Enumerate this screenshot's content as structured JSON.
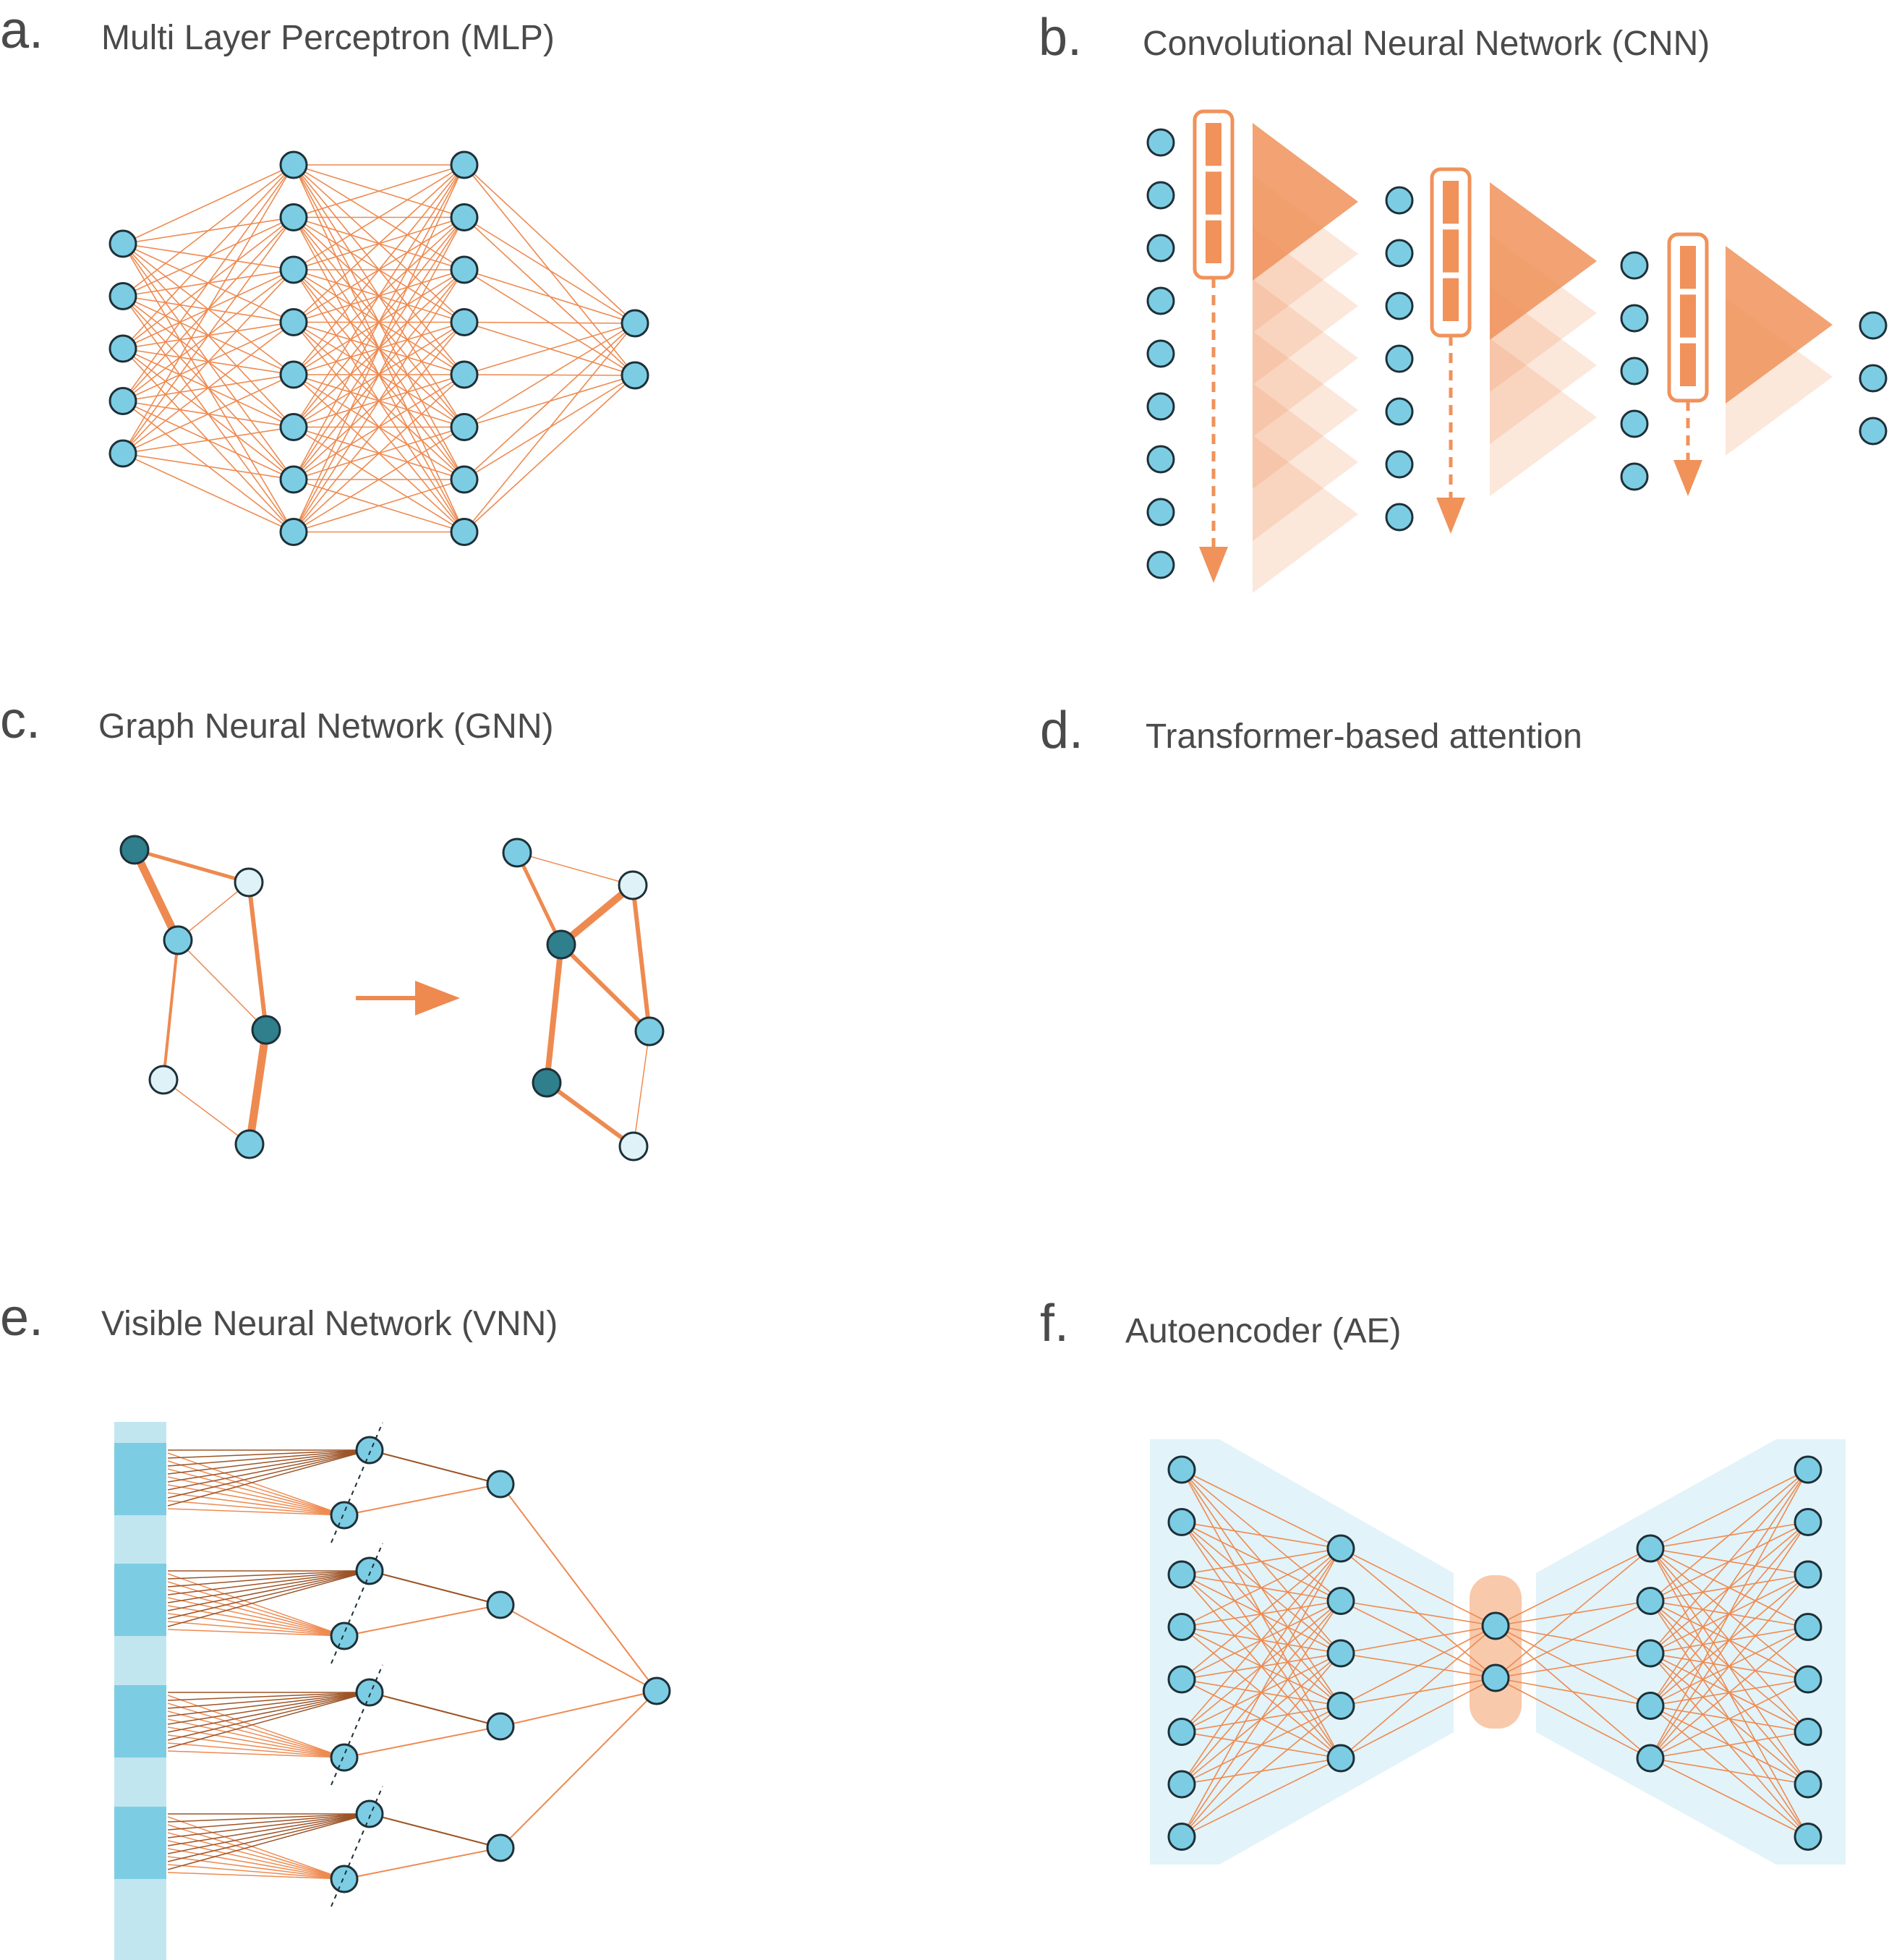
{
  "colors": {
    "node_fill": "#7ccde3",
    "node_stroke": "#1e3038",
    "node_dark": "#2f7f8c",
    "node_light": "#dff2f8",
    "edge": "#ee8a50",
    "edge_dark": "#9c5326",
    "cnn_orange": "#f0925a",
    "ae_bg": "#e2f3f9",
    "ae_bottleneck": "#f8c9ab",
    "vnn_bar_light": "#c2e6ef",
    "vnn_bar_dark": "#7ccde3"
  },
  "panels": {
    "a": {
      "letter": "a.",
      "title": "Multi Layer Perceptron (MLP)"
    },
    "b": {
      "letter": "b.",
      "title": "Convolutional Neural Network (CNN)"
    },
    "c": {
      "letter": "c.",
      "title": "Graph Neural Network (GNN)"
    },
    "d": {
      "letter": "d.",
      "title": "Transformer-based attention"
    },
    "e": {
      "letter": "e.",
      "title": "Visible Neural Network (VNN)"
    },
    "f": {
      "letter": "f.",
      "title": "Autoencoder (AE)"
    }
  },
  "icons": {
    "gnn_arrow": "arrow-right-icon",
    "cnn_arrow": "dashed-arrow-down-icon"
  }
}
